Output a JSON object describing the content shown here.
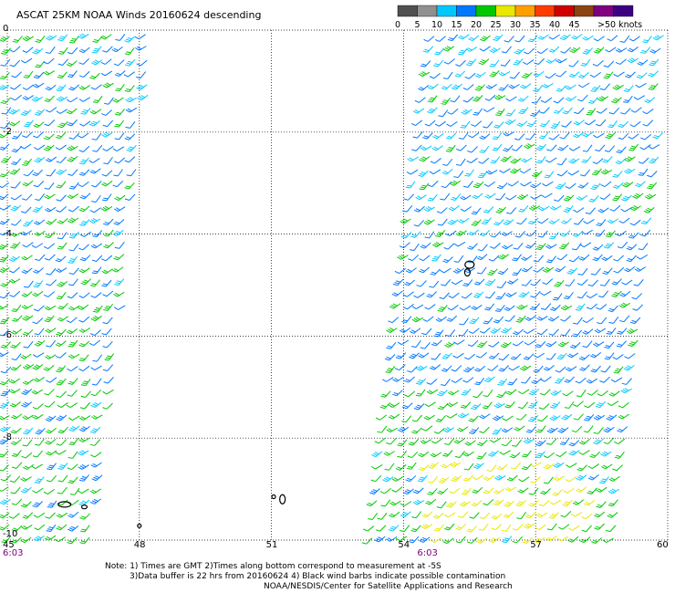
{
  "chart_data": {
    "type": "scatter",
    "title": "ASCAT 25KM NOAA Winds 20160624 descending",
    "x_ticks": [
      45,
      48,
      51,
      54,
      57,
      60
    ],
    "y_ticks": [
      0,
      -2,
      -4,
      -6,
      -8,
      -10
    ],
    "xlim": [
      45,
      60
    ],
    "ylim": [
      -10,
      0
    ],
    "grid": true,
    "legend": {
      "placement": "top-right",
      "labels": [
        "0",
        "5",
        "10",
        "15",
        "20",
        "25",
        "30",
        "35",
        "40",
        "45",
        ">50 knots"
      ],
      "colors": [
        "#505050",
        "#909090",
        "#00c8ff",
        "#0078ff",
        "#00c800",
        "#e8e800",
        "#ffa000",
        "#ff3c00",
        "#d00000",
        "#8b4513",
        "#800080",
        "#3c0082"
      ]
    },
    "series": [
      {
        "name": "west swath",
        "lon_range": [
          45,
          48.4
        ],
        "lat_range": [
          -10,
          0
        ],
        "dominant_speed_knots": "10-20"
      },
      {
        "name": "east swath",
        "lon_range": [
          53.5,
          60
        ],
        "lat_range": [
          -10,
          0
        ],
        "dominant_speed_knots": "10-25"
      }
    ],
    "time_labels": [
      {
        "x": 45,
        "label": "6:03"
      },
      {
        "x": 54,
        "label": "6:03"
      }
    ]
  },
  "notes": {
    "line1": "Note: 1) Times are GMT 2)Times along bottom correspond to measurement at -5S",
    "line2": "3)Data buffer is 22 hrs from 20160624 4) Black wind barbs indicate possible contamination",
    "line3": "NOAA/NESDIS/Center for Satellite Applications and Research"
  }
}
